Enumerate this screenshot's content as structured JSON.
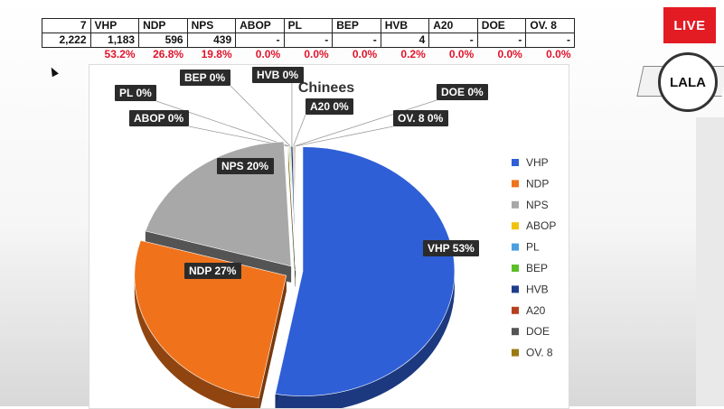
{
  "table": {
    "header": [
      "7",
      "VHP",
      "NDP",
      "NPS",
      "ABOP",
      "PL",
      "BEP",
      "HVB",
      "A20",
      "DOE",
      "OV. 8"
    ],
    "counts": [
      "2,222",
      "1,183",
      "596",
      "439",
      "-",
      "-",
      "-",
      "4",
      "-",
      "-",
      "-"
    ],
    "percents": [
      "",
      "53.2%",
      "26.8%",
      "19.8%",
      "0.0%",
      "0.0%",
      "0.0%",
      "0.2%",
      "0.0%",
      "0.0%",
      "0.0%"
    ]
  },
  "live_badge": "LIVE",
  "logo_text": "LALA",
  "colors": {
    "table_percent": "#e0142b",
    "live_bg": "#e31b23"
  },
  "chart_data": {
    "type": "pie",
    "title": "Chinees",
    "legend_position": "right",
    "series": [
      {
        "name": "VHP",
        "value": 53.2,
        "label": "VHP 53%",
        "color": "#2f5fd6"
      },
      {
        "name": "NDP",
        "value": 26.8,
        "label": "NDP 27%",
        "color": "#f0731c"
      },
      {
        "name": "NPS",
        "value": 19.8,
        "label": "NPS 20%",
        "color": "#a8a8a8"
      },
      {
        "name": "ABOP",
        "value": 0.0,
        "label": "ABOP 0%",
        "color": "#f2c20c"
      },
      {
        "name": "PL",
        "value": 0.0,
        "label": "PL 0%",
        "color": "#4a9fe0"
      },
      {
        "name": "BEP",
        "value": 0.0,
        "label": "BEP 0%",
        "color": "#5cbf2a"
      },
      {
        "name": "HVB",
        "value": 0.2,
        "label": "HVB 0%",
        "color": "#1f3d8c"
      },
      {
        "name": "A20",
        "value": 0.0,
        "label": "A20 0%",
        "color": "#b5401e"
      },
      {
        "name": "DOE",
        "value": 0.0,
        "label": "DOE 0%",
        "color": "#555555"
      },
      {
        "name": "OV. 8",
        "value": 0.0,
        "label": "OV. 8 0%",
        "color": "#9a7a12"
      }
    ]
  }
}
